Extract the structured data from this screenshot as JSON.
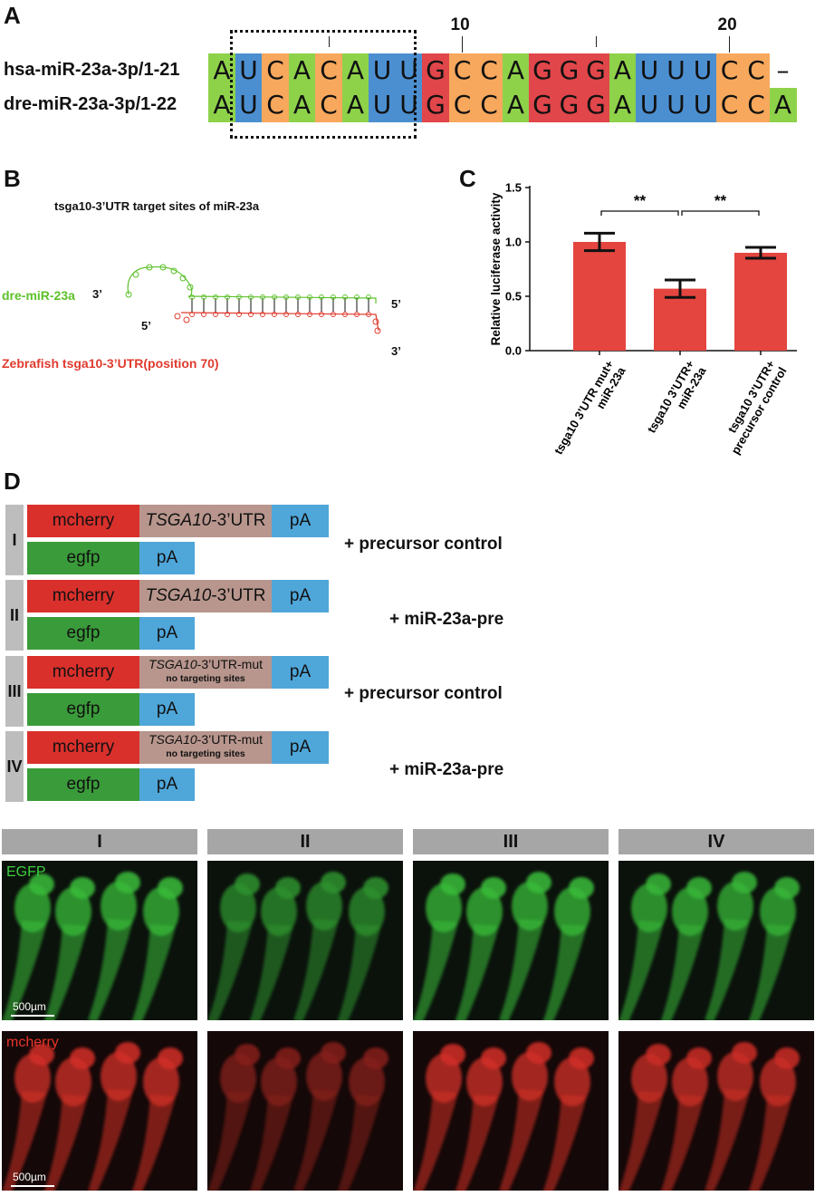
{
  "panels": {
    "a": "A",
    "b": "B",
    "c": "C",
    "d": "D"
  },
  "alignment": {
    "rows": [
      {
        "label": "hsa-miR-23a-3p/1-21",
        "seq": [
          "A",
          "U",
          "C",
          "A",
          "C",
          "A",
          "U",
          "U",
          "G",
          "C",
          "C",
          "A",
          "G",
          "G",
          "G",
          "A",
          "U",
          "U",
          "U",
          "C",
          "C",
          "–"
        ]
      },
      {
        "label": "dre-miR-23a-3p/1-22",
        "seq": [
          "A",
          "U",
          "C",
          "A",
          "C",
          "A",
          "U",
          "U",
          "G",
          "C",
          "C",
          "A",
          "G",
          "G",
          "G",
          "A",
          "U",
          "U",
          "U",
          "C",
          "C",
          "A"
        ]
      }
    ],
    "position_labels": [
      "10",
      "20"
    ],
    "colors": {
      "A": "#8ed24a",
      "U": "#4c8fd1",
      "C": "#f7a85c",
      "G": "#e0464a",
      "gap": "#ffffff"
    }
  },
  "structure": {
    "title": "tsga10-3’UTR target sites of miR-23a",
    "mirna_label": "dre-miR-23a",
    "utr_label": "Zebrafish tsga10-3’UTR(position 70)",
    "end_labels": {
      "mir_3": "3’",
      "mir_5": "5’",
      "utr_5": "5’",
      "utr_3": "3’"
    },
    "colors": {
      "mirna": "#5cc12a",
      "utr": "#e03b2e"
    }
  },
  "chart_data": {
    "type": "bar",
    "categories": [
      "tsga10 3’UTR mut+ miR-23a",
      "tsga10 3’UTR+ miR-23a",
      "tsga10 3’UTR+ precursor control"
    ],
    "category_lines": [
      [
        "tsga10 3’UTR mut+",
        "miR-23a"
      ],
      [
        "tsga10 3’UTR+",
        "miR-23a"
      ],
      [
        "tsga10 3’UTR+",
        "precursor control"
      ]
    ],
    "values": [
      1.0,
      0.57,
      0.9
    ],
    "errors": [
      0.08,
      0.08,
      0.05
    ],
    "ylabel": "Relative luciferase activity",
    "ylim": [
      0,
      1.5
    ],
    "yticks": [
      "0.0",
      "0.5",
      "1.0",
      "1.5"
    ],
    "significance": [
      {
        "from": 0,
        "to": 1,
        "label": "**"
      },
      {
        "from": 1,
        "to": 2,
        "label": "**"
      }
    ],
    "bar_color": "#e4453f"
  },
  "constructs": {
    "groups": [
      {
        "numeral": "I",
        "utr": "TSGA10",
        "utr_suffix": "-3’UTR",
        "note": "",
        "treatment": "+ precursor control"
      },
      {
        "numeral": "II",
        "utr": "TSGA10",
        "utr_suffix": "-3’UTR",
        "note": "",
        "treatment": "+ miR-23a-pre"
      },
      {
        "numeral": "III",
        "utr": "TSGA10",
        "utr_suffix": "-3’UTR-mut",
        "note": "no targeting sites",
        "treatment": "+ precursor control"
      },
      {
        "numeral": "IV",
        "utr": "TSGA10",
        "utr_suffix": "-3’UTR-mut",
        "note": "no targeting sites",
        "treatment": "+ miR-23a-pre"
      }
    ],
    "mcherry_label": "mcherry",
    "egfp_label": "egfp",
    "pa_label": "pA",
    "colors": {
      "mcherry": "#d9302c",
      "utr": "#b8968d",
      "pa": "#4fa6d9",
      "egfp": "#3a9b3a",
      "numeral_bg": "#bdbdbd"
    }
  },
  "images": {
    "columns": [
      "I",
      "II",
      "III",
      "IV"
    ],
    "channels": [
      {
        "name": "EGFP",
        "color": "#3ecf3e",
        "intensity": [
          1.0,
          0.6,
          1.0,
          0.95
        ]
      },
      {
        "name": "mcherry",
        "color": "#e8342b",
        "intensity": [
          1.0,
          0.35,
          1.0,
          0.95
        ]
      }
    ],
    "scale_bar": "500µm"
  }
}
